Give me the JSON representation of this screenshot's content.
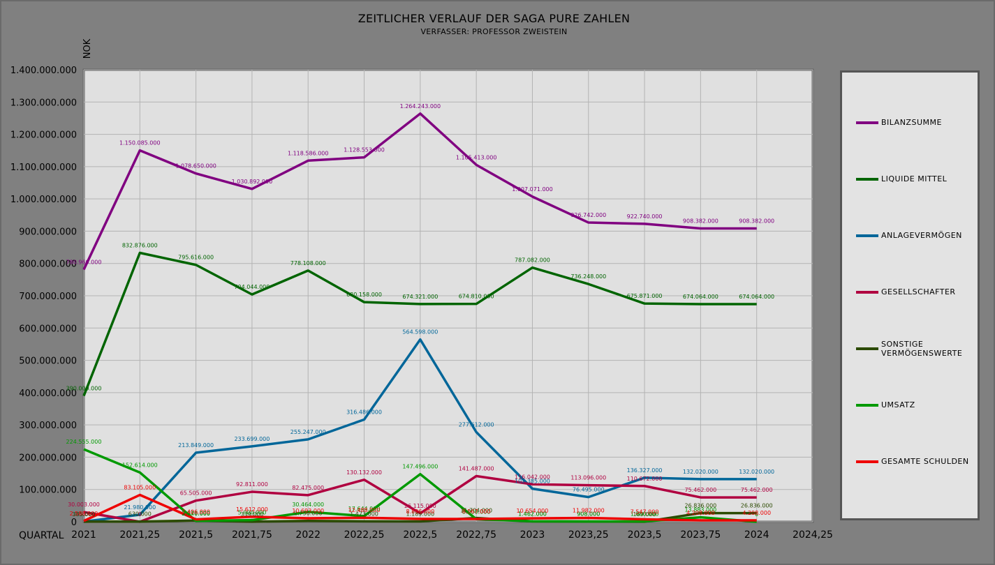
{
  "chart_data": {
    "type": "line",
    "title": "ZEITLICHER VERLAUF DER SAGA PURE ZAHLEN",
    "subtitle": "VERFASSER: PROFESSOR ZWEISTEIN",
    "ylabel": "NOK",
    "xlabel": "QUARTAL",
    "ylim": [
      0,
      1400000000
    ],
    "xlim": [
      2021,
      2024.25
    ],
    "grid": true,
    "legend_position": "right",
    "x": [
      2021,
      2021.25,
      2021.5,
      2021.75,
      2022,
      2022.25,
      2022.5,
      2022.75,
      2023,
      2023.25,
      2023.5,
      2023.75,
      2024
    ],
    "x_tick_labels": [
      "2021",
      "2021,25",
      "2021,5",
      "2021,75",
      "2022",
      "2022,25",
      "2022,5",
      "2022,75",
      "2023",
      "2023,25",
      "2023,5",
      "2023,75",
      "2024",
      "2024,25"
    ],
    "y_tick_labels": [
      "0",
      "100.000.000",
      "200.000.000",
      "300.000.000",
      "400.000.000",
      "500.000.000",
      "600.000.000",
      "700.000.000",
      "800.000.000",
      "900.000.000",
      "1.000.000.000",
      "1.100.000.000",
      "1.200.000.000",
      "1.300.000.000",
      "1.400.000.000"
    ],
    "series": [
      {
        "name": "BILANZSUMME",
        "color": "#800080",
        "values": [
          780960000,
          1150085000,
          1078650000,
          1030892000,
          1118586000,
          1128553000,
          1264243000,
          1105413000,
          1007071000,
          926742000,
          922740000,
          908382000,
          908382000
        ],
        "labels": [
          "780.960.000",
          "1.150.085.000",
          "1.078.650.000",
          "1.030.892.000",
          "1.118.586.000",
          "1.128.553.000",
          "1.264.243.000",
          "1.105.413.000",
          "1.007.071.000",
          "926.742.000",
          "922.740.000",
          "908.382.000",
          "908.382.000"
        ]
      },
      {
        "name": "LIQUIDE MITTEL",
        "color": "#006400",
        "values": [
          390000000,
          832876000,
          795616000,
          704044000,
          778108000,
          680158000,
          674321000,
          674810000,
          787082000,
          736248000,
          675871000,
          674064000,
          674064000
        ],
        "labels": [
          "390.000.000",
          "832.876.000",
          "795.616.000",
          "704.044.000",
          "778.108.000",
          "680.158.000",
          "674.321.000",
          "674.810.000",
          "787.082.000",
          "736.248.000",
          "675.871.000",
          "674.064.000",
          "674.064.000"
        ]
      },
      {
        "name": "ANLAGEVERMÖGEN",
        "color": "#006699",
        "values": [
          385000,
          21980000,
          213849000,
          233699000,
          255247000,
          316486000,
          564598000,
          277612000,
          102385000,
          76495000,
          136327000,
          132020000,
          132020000
        ],
        "labels": [
          "385.000",
          "21.980.000",
          "213.849.000",
          "233.699.000",
          "255.247.000",
          "316.486.000",
          "564.598.000",
          "277.612.000",
          "102.385.000",
          "76.495.000",
          "136.327.000",
          "132.020.000",
          "132.020.000"
        ]
      },
      {
        "name": "GESELLSCHAFTER",
        "color": "#b00040",
        "values": [
          30003000,
          0,
          65505000,
          92811000,
          82475000,
          130132000,
          26115000,
          141487000,
          116042000,
          113096000,
          110672000,
          75462000,
          75462000
        ],
        "labels": [
          "30.003.000",
          "0",
          "65.505.000",
          "92.811.000",
          "82.475.000",
          "130.132.000",
          "26.115.000",
          "141.487.000",
          "116.042.000",
          "113.096.000",
          "110.672.000",
          "75.462.000",
          "75.462.000"
        ]
      },
      {
        "name": "SONSTIGE\nVERMÖGENSWERTE",
        "color": "#2b4a00",
        "values": [
          385000,
          630000,
          3676000,
          339000,
          2756000,
          1473000,
          1189000,
          11704000,
          1462000,
          908000,
          169000,
          26836000,
          26836000
        ],
        "labels": [
          "385.000",
          "630.000",
          "3.676.000",
          "339.000",
          "2.756.000",
          "1.473.000",
          "1.189.000",
          "11.704.000",
          "1.462.000",
          "908.000",
          "169.000",
          "26.836.000",
          "26.836.000"
        ]
      },
      {
        "name": "UMSATZ",
        "color": "#009900",
        "values": [
          224555000,
          152614000,
          2640000,
          5000000,
          30464000,
          17644000,
          147496000,
          8000000,
          1462000,
          908000,
          1000000,
          13883000,
          0
        ],
        "labels": [
          "224.555.000",
          "152.614.000",
          "2.640.000",
          "5.000.000",
          "30.464.000",
          "17.644.000",
          "147.496.000",
          "8.000.000",
          "1.462.000",
          "908.000",
          "1.000.000",
          "13.883.000",
          "0"
        ]
      },
      {
        "name": "GESAMTE SCHULDEN",
        "color": "#ee0000",
        "values": [
          2588000,
          83105000,
          7406000,
          15612000,
          10693000,
          12488000,
          8896000,
          8567000,
          10654000,
          11982000,
          7547000,
          4208000,
          4208000
        ],
        "labels": [
          "2.588.000",
          "83.105.000",
          "7.406.000",
          "15.612.000",
          "10.693.000",
          "12.488.000",
          "8.896.000",
          "8.567.000",
          "10.654.000",
          "11.982.000",
          "7.547.000",
          "4.208.000",
          "4.208.000"
        ]
      }
    ]
  }
}
